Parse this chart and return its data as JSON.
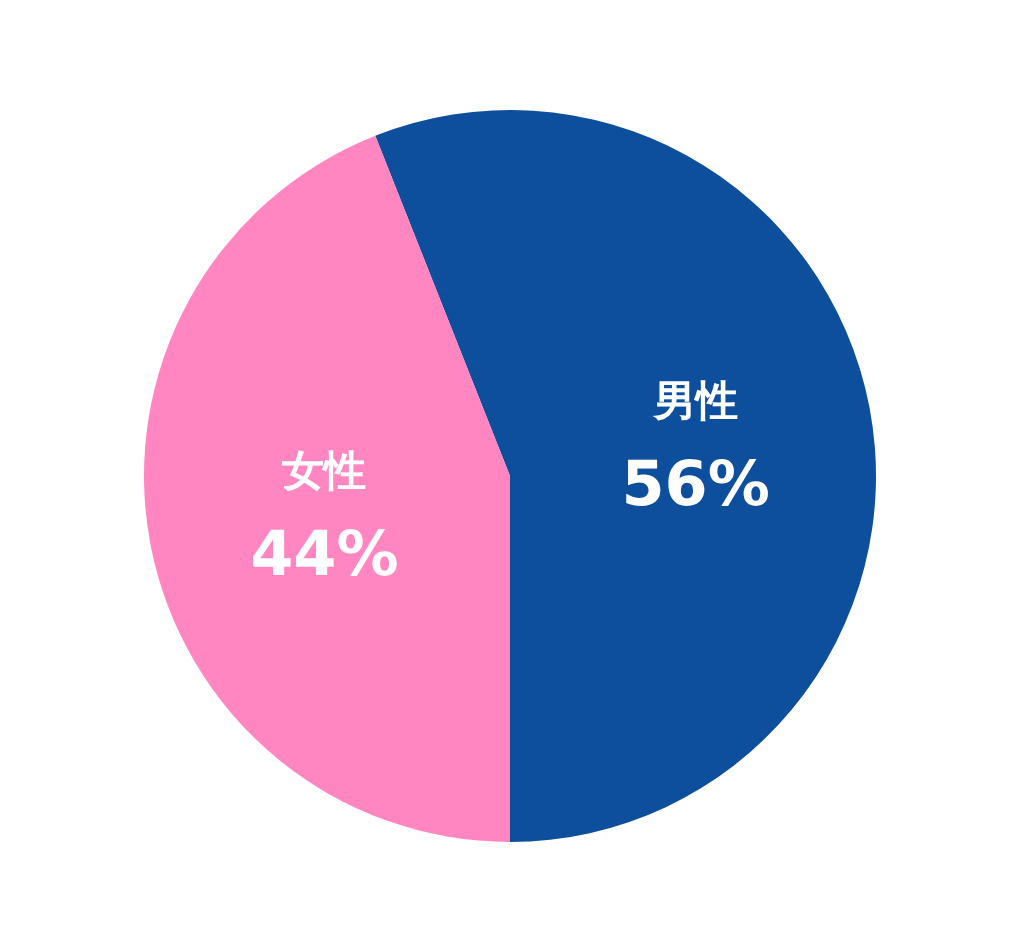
{
  "chart_data": {
    "type": "pie",
    "categories": [
      "男性",
      "女性"
    ],
    "values": [
      56,
      44
    ],
    "value_labels": [
      "56%",
      "44%"
    ],
    "colors": [
      "#0d4f9c",
      "#ff86c1"
    ]
  }
}
